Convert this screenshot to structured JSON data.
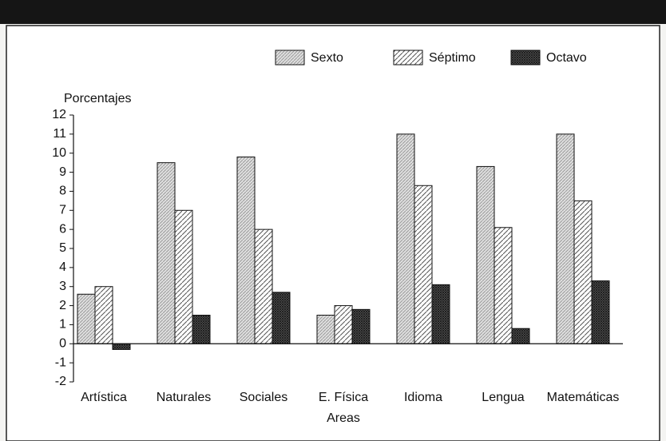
{
  "chart_data": {
    "type": "bar",
    "y_label": "Porcentajes",
    "x_label": "Areas",
    "categories": [
      "Artística",
      "Naturales",
      "Sociales",
      "E. Física",
      "Idioma",
      "Lengua",
      "Matemáticas"
    ],
    "series": [
      {
        "name": "Sexto",
        "color": "#9a9a9a",
        "values": [
          2.6,
          9.5,
          9.8,
          1.5,
          11.0,
          9.3,
          11.0
        ]
      },
      {
        "name": "Séptimo",
        "color": "#555555",
        "values": [
          3.0,
          7.0,
          6.0,
          2.0,
          8.3,
          6.1,
          7.5
        ]
      },
      {
        "name": "Octavo",
        "color": "#1a1a1a",
        "values": [
          -0.3,
          1.5,
          2.7,
          1.8,
          3.1,
          0.8,
          3.3
        ]
      }
    ],
    "ylim": [
      -2,
      12
    ],
    "yticks": [
      -2,
      -1,
      0,
      1,
      2,
      3,
      4,
      5,
      6,
      7,
      8,
      9,
      10,
      11,
      12
    ],
    "legend": "top"
  }
}
